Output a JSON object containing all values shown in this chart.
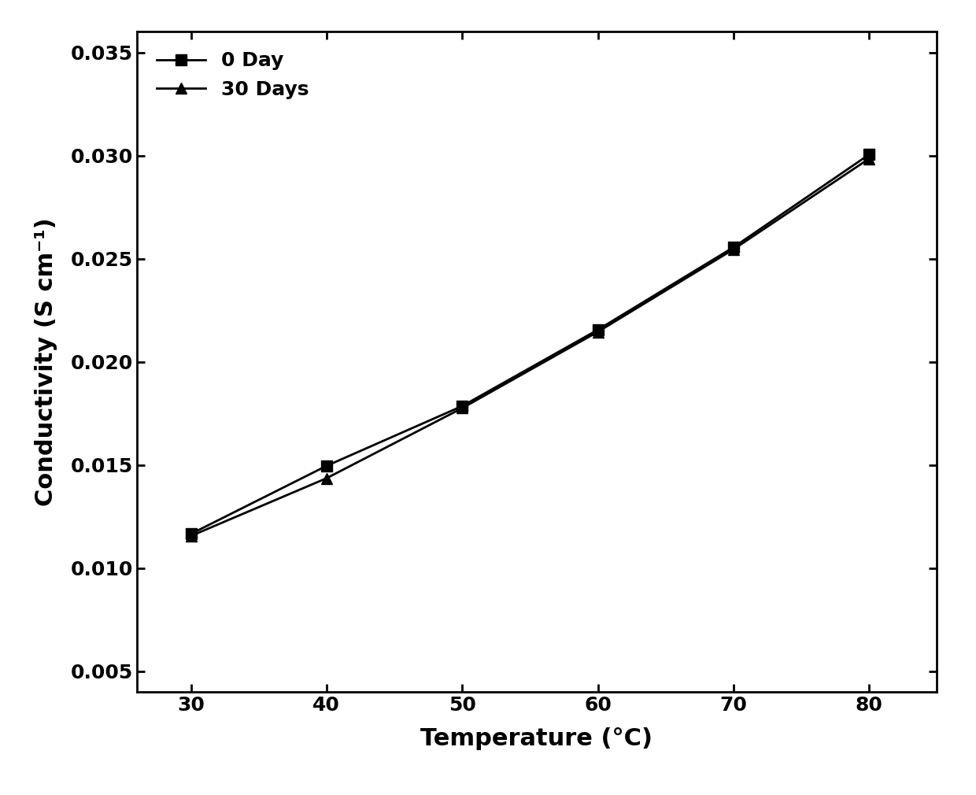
{
  "x": [
    30,
    40,
    50,
    60,
    70,
    80
  ],
  "y_0day": [
    0.01165,
    0.01495,
    0.01785,
    0.02155,
    0.02555,
    0.03005
  ],
  "y_30days": [
    0.01155,
    0.01435,
    0.01775,
    0.02145,
    0.02545,
    0.02985
  ],
  "series_labels": [
    "0 Day",
    "30 Days"
  ],
  "markers": [
    "s",
    "^"
  ],
  "line_colors": [
    "#000000",
    "#000000"
  ],
  "marker_size": 10,
  "line_width": 2.0,
  "xlabel": "Temperature (°C)",
  "ylabel": "Conductivity (S cm⁻¹)",
  "xlim": [
    26,
    85
  ],
  "ylim": [
    0.004,
    0.036
  ],
  "yticks": [
    0.005,
    0.01,
    0.015,
    0.02,
    0.025,
    0.03,
    0.035
  ],
  "xticks": [
    30,
    40,
    50,
    60,
    70,
    80
  ],
  "label_fontsize": 22,
  "tick_fontsize": 18,
  "legend_fontsize": 18,
  "background_color": "#ffffff"
}
